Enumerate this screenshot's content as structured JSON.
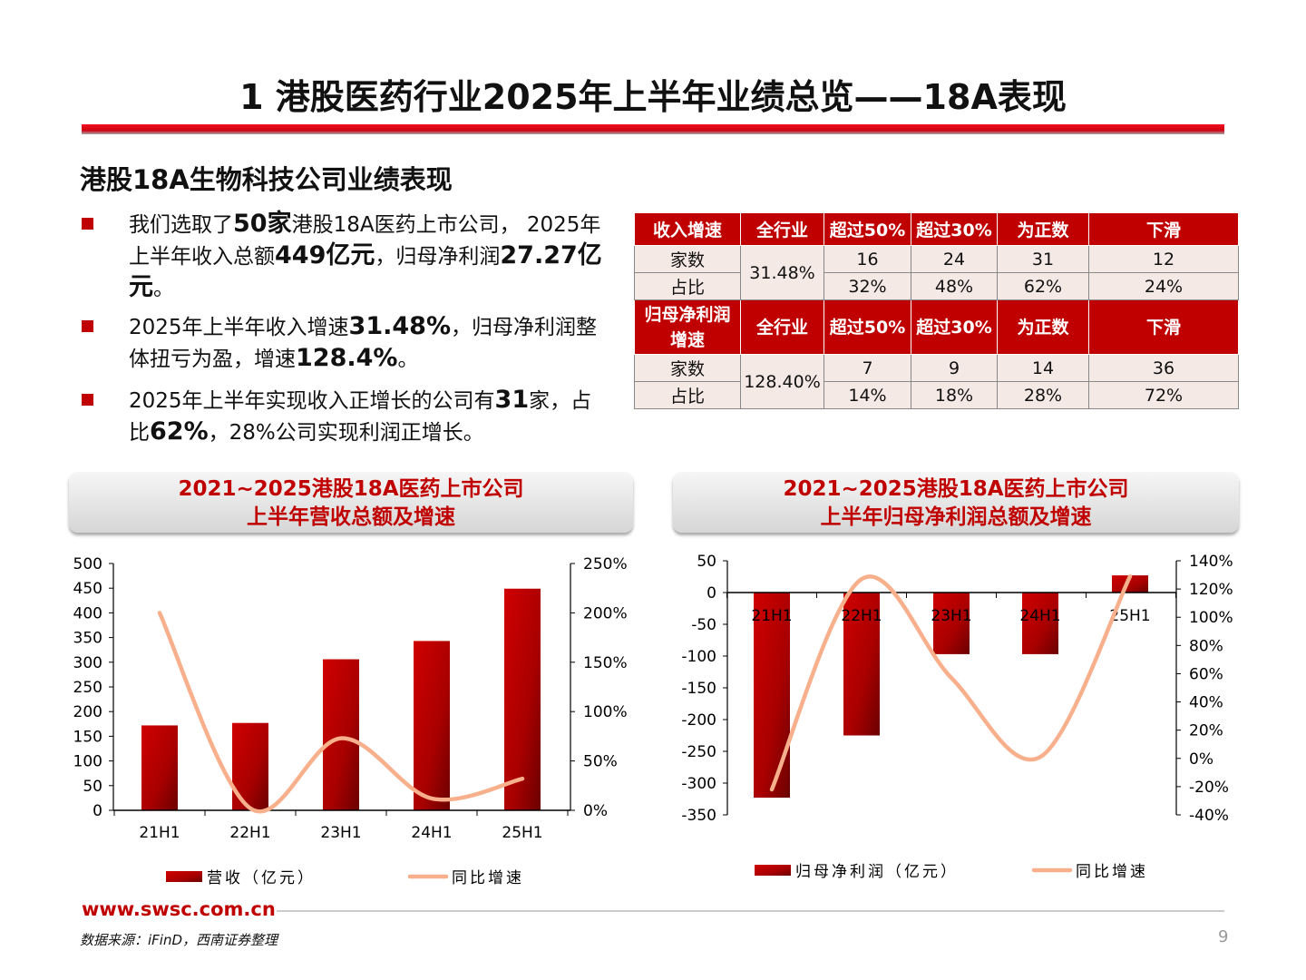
{
  "title": "1 港股医药行业2025年上半年业绩总览——18A表现",
  "subtitle": "港股18A生物科技公司业绩表现",
  "bullets": [
    [
      {
        "t": "我们选取了"
      },
      {
        "t": "50家",
        "b": true
      },
      {
        "t": "港股18A医药上市公司， 2025年上半年收入总额"
      },
      {
        "t": "449亿元",
        "b": true
      },
      {
        "t": "，归母净利润"
      },
      {
        "t": "27.27亿元",
        "b": true
      },
      {
        "t": "。"
      }
    ],
    [
      {
        "t": "2025年上半年收入增速"
      },
      {
        "t": "31.48%",
        "b": true
      },
      {
        "t": "，归母净利润整体扭亏为盈，增速"
      },
      {
        "t": "128.4%",
        "b": true
      },
      {
        "t": "。"
      }
    ],
    [
      {
        "t": "2025年上半年实现收入正增长的公司有"
      },
      {
        "t": "31",
        "b": true
      },
      {
        "t": "家，占比"
      },
      {
        "t": "62%",
        "b": true
      },
      {
        "t": "，28%公司实现利润正增长。"
      }
    ]
  ],
  "table": {
    "revenue": {
      "header": [
        "收入增速",
        "全行业",
        "超过50%",
        "超过30%",
        "为正数",
        "下滑"
      ],
      "overall": "31.48%",
      "count_label": "家数",
      "share_label": "占比",
      "counts": [
        "16",
        "24",
        "31",
        "12"
      ],
      "shares": [
        "32%",
        "48%",
        "62%",
        "24%"
      ]
    },
    "profit": {
      "header": [
        "归母净利润增速",
        "全行业",
        "超过50%",
        "超过30%",
        "为正数",
        "下滑"
      ],
      "overall": "128.40%",
      "count_label": "家数",
      "share_label": "占比",
      "counts": [
        "7",
        "9",
        "14",
        "36"
      ],
      "shares": [
        "14%",
        "18%",
        "28%",
        "72%"
      ]
    }
  },
  "colors": {
    "accent": "#c00000",
    "bar_dark": "#700000",
    "line": "#f8b08c",
    "table_cell": "#f5e9e6"
  },
  "chart_data": [
    {
      "type": "bar+line",
      "title_line1": "2021~2025港股18A医药上市公司",
      "title_line2": "上半年营收总额及增速",
      "categories": [
        "21H1",
        "22H1",
        "23H1",
        "24H1",
        "25H1"
      ],
      "series": [
        {
          "name": "营收（亿元）",
          "type": "bar",
          "axis": "left",
          "values": [
            172,
            177,
            306,
            343,
            449
          ]
        },
        {
          "name": "同比增速",
          "type": "line",
          "axis": "right",
          "values": [
            200,
            2,
            73,
            12,
            32
          ]
        }
      ],
      "ylim": [
        0,
        500
      ],
      "yticks": [
        "500",
        "450",
        "400",
        "350",
        "300",
        "250",
        "200",
        "150",
        "100",
        "50",
        "0"
      ],
      "y2lim": [
        0,
        250
      ],
      "y2ticks": [
        "250%",
        "200%",
        "150%",
        "100%",
        "50%",
        "0%"
      ],
      "legend": "bottom",
      "grid": false
    },
    {
      "type": "bar+line",
      "title_line1": "2021~2025港股18A医药上市公司",
      "title_line2": "上半年归母净利润总额及增速",
      "categories": [
        "21H1",
        "22H1",
        "23H1",
        "24H1",
        "25H1"
      ],
      "series": [
        {
          "name": "归母净利润（亿元）",
          "type": "bar",
          "axis": "left",
          "values": [
            -323,
            -225,
            -97,
            -97,
            27
          ]
        },
        {
          "name": "同比增速",
          "type": "line",
          "axis": "right",
          "values": [
            -22,
            127,
            57,
            1,
            129
          ]
        }
      ],
      "ylim": [
        -350,
        50
      ],
      "yticks": [
        "50",
        "0",
        "-50",
        "-100",
        "-150",
        "-200",
        "-250",
        "-300",
        "-350"
      ],
      "y2lim": [
        -40,
        140
      ],
      "y2ticks": [
        "140%",
        "120%",
        "100%",
        "80%",
        "60%",
        "40%",
        "20%",
        "0%",
        "-20%",
        "-40%"
      ],
      "legend": "bottom",
      "grid": false
    }
  ],
  "footer": {
    "site": "www.swsc.com.cn",
    "source": "数据来源：iFinD，西南证券整理",
    "page": "9"
  }
}
